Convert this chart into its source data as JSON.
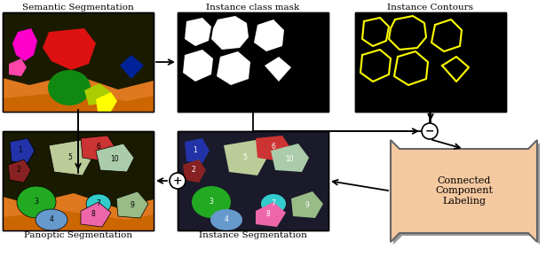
{
  "labels": {
    "semantic_seg": "Semantic Segmentation",
    "instance_mask": "Instance class mask",
    "instance_contours": "Instance Contours",
    "panoptic_seg": "Panoptic Segmentation",
    "instance_seg": "Instance Segmentation",
    "ccl": "Connected\nComponent\nLabeling"
  },
  "colors": {
    "background": "#ffffff",
    "ccl_fill": "#f5c9a0",
    "ccl_border": "#666666",
    "ccl_shadow": "#aaaaaa"
  },
  "layout": {
    "fig_width": 6.24,
    "fig_height": 2.9,
    "dpi": 100
  }
}
